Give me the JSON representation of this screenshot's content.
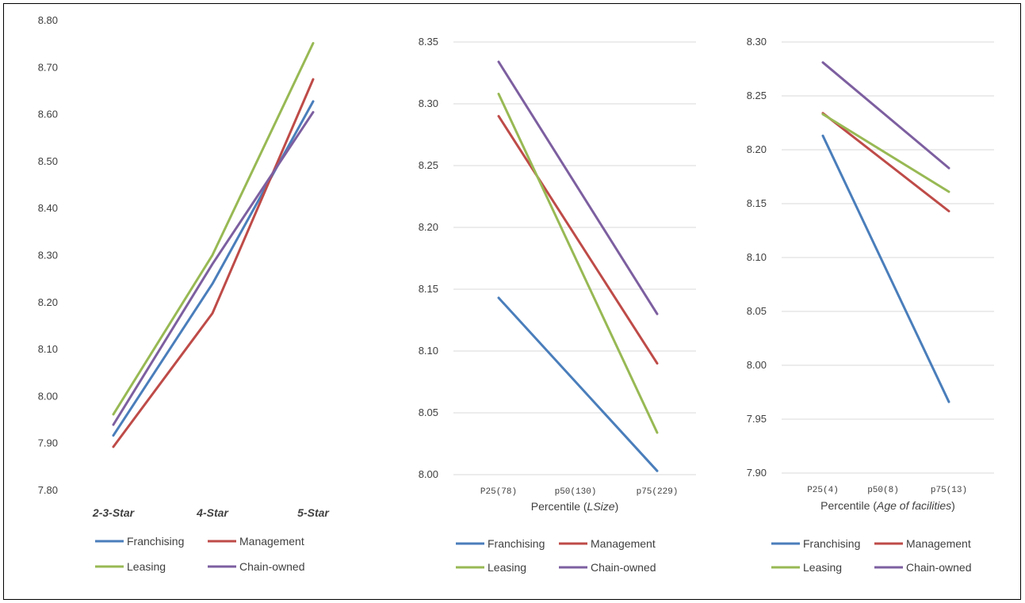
{
  "colors": {
    "Franchising": "#4a7ebb",
    "Management": "#be4b48",
    "Leasing": "#98b954",
    "Chain-owned": "#7d5fa0",
    "grid": "#d9d9d9",
    "text": "#404040"
  },
  "chart_data": [
    {
      "type": "line",
      "categories": [
        "2-3-Star",
        "4-Star",
        "5-Star"
      ],
      "category_style": "italic-bold",
      "xlabel": "",
      "ylabel": "",
      "ylim": [
        7.8,
        8.8
      ],
      "y_step": 0.1,
      "y_ticks": [
        "7.80",
        "7.90",
        "8.00",
        "8.10",
        "8.20",
        "8.30",
        "8.40",
        "8.50",
        "8.60",
        "8.70",
        "8.80"
      ],
      "grid": false,
      "legend_position": "bottom",
      "series": [
        {
          "name": "Franchising",
          "values": [
            7.917,
            8.24,
            8.628
          ]
        },
        {
          "name": "Management",
          "values": [
            7.893,
            8.177,
            8.675
          ]
        },
        {
          "name": "Leasing",
          "values": [
            7.962,
            8.301,
            8.752
          ]
        },
        {
          "name": "Chain-owned",
          "values": [
            7.94,
            8.282,
            8.605
          ]
        }
      ]
    },
    {
      "type": "line",
      "categories": [
        "P25(78)",
        "p50(130)",
        "p75(229)"
      ],
      "category_style": "mono",
      "xlabel": {
        "prefix": "Percentile (",
        "italic": "LSize",
        "suffix": ")"
      },
      "ylabel": "",
      "ylim": [
        8.0,
        8.35
      ],
      "y_step": 0.05,
      "y_ticks": [
        "8.00",
        "8.05",
        "8.10",
        "8.15",
        "8.20",
        "8.25",
        "8.30",
        "8.35"
      ],
      "grid": true,
      "legend_position": "bottom",
      "series": [
        {
          "name": "Franchising",
          "values": [
            8.143,
            null,
            8.003
          ]
        },
        {
          "name": "Management",
          "values": [
            8.29,
            null,
            8.09
          ]
        },
        {
          "name": "Leasing",
          "values": [
            8.308,
            null,
            8.034
          ]
        },
        {
          "name": "Chain-owned",
          "values": [
            8.334,
            null,
            8.13
          ]
        }
      ]
    },
    {
      "type": "line",
      "categories": [
        "P25(4)",
        "p50(8)",
        "p75(13)"
      ],
      "category_style": "mono",
      "xlabel": {
        "prefix": "Percentile (",
        "italic": "Age of facilities",
        "suffix": ")"
      },
      "ylabel": "",
      "ylim": [
        7.9,
        8.3
      ],
      "y_step": 0.05,
      "y_ticks": [
        "7.90",
        "7.95",
        "8.00",
        "8.05",
        "8.10",
        "8.15",
        "8.20",
        "8.25",
        "8.30"
      ],
      "grid": true,
      "legend_position": "bottom",
      "series": [
        {
          "name": "Franchising",
          "values": [
            8.213,
            null,
            7.966
          ]
        },
        {
          "name": "Management",
          "values": [
            8.234,
            null,
            8.143
          ]
        },
        {
          "name": "Leasing",
          "values": [
            8.233,
            null,
            8.161
          ]
        },
        {
          "name": "Chain-owned",
          "values": [
            8.281,
            null,
            8.183
          ]
        }
      ]
    }
  ]
}
